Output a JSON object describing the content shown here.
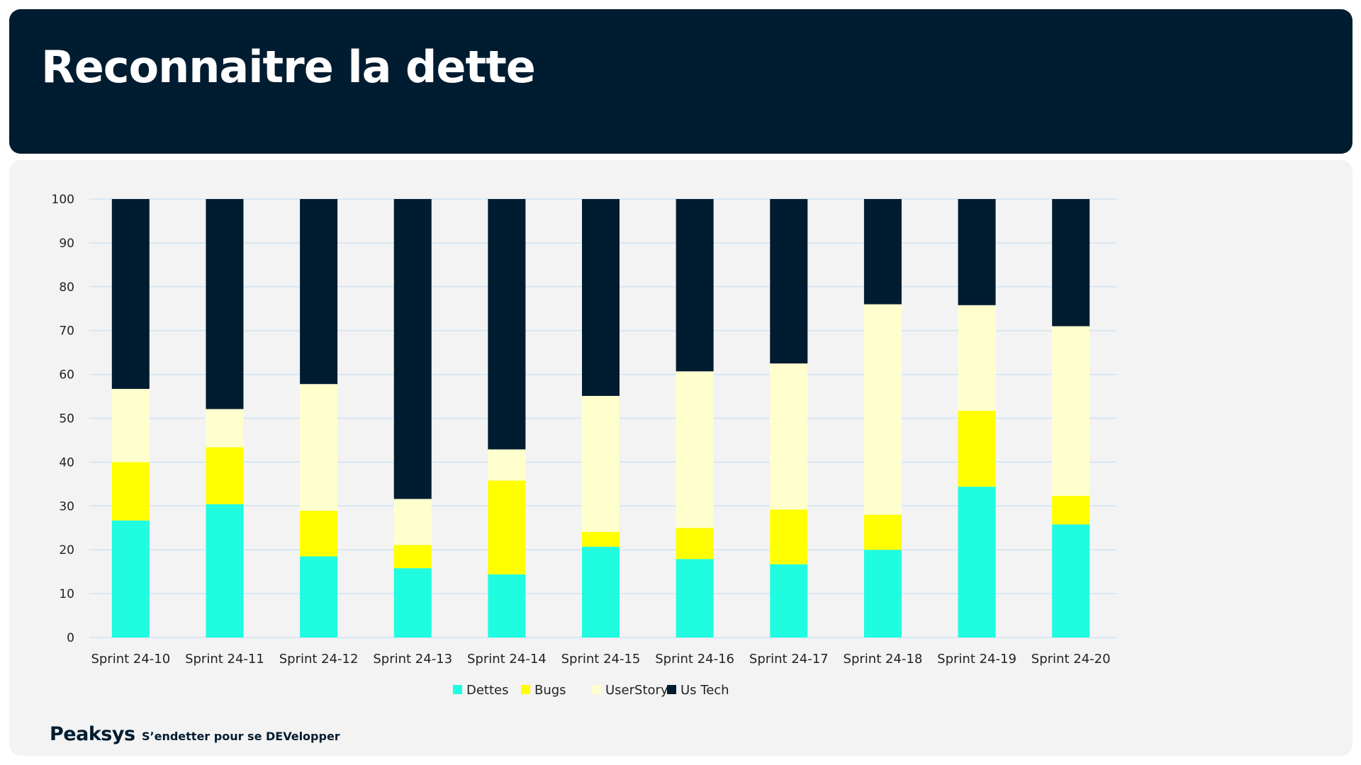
{
  "slide": {
    "title": "Reconnaitre la dette"
  },
  "footer": {
    "brand": "Peaksys",
    "tagline": "S’endetter pour se DEVelopper"
  },
  "chart_data": {
    "type": "bar",
    "stacked": true,
    "title": "",
    "xlabel": "",
    "ylabel": "",
    "ylim": [
      0,
      100
    ],
    "yticks": [
      0,
      10,
      20,
      30,
      40,
      50,
      60,
      70,
      80,
      90,
      100
    ],
    "grid": true,
    "legend_position": "bottom",
    "categories": [
      "Sprint 24-10",
      "Sprint 24-11",
      "Sprint 24-12",
      "Sprint 24-13",
      "Sprint 24-14",
      "Sprint 24-15",
      "Sprint 24-16",
      "Sprint 24-17",
      "Sprint 24-18",
      "Sprint 24-19",
      "Sprint 24-20"
    ],
    "series": [
      {
        "name": "Dettes",
        "color": "#1ffce0",
        "values": [
          26.7,
          30.4,
          18.5,
          15.8,
          14.4,
          20.7,
          17.9,
          16.7,
          20.0,
          34.4,
          25.8
        ]
      },
      {
        "name": "Bugs",
        "color": "#ffff00",
        "values": [
          13.3,
          13.0,
          10.4,
          5.3,
          21.4,
          3.4,
          7.1,
          12.5,
          8.0,
          17.3,
          6.5
        ]
      },
      {
        "name": "UserStory",
        "color": "#ffffce",
        "values": [
          16.7,
          8.7,
          28.9,
          10.5,
          7.1,
          31.0,
          35.7,
          33.3,
          48.0,
          24.1,
          38.7
        ]
      },
      {
        "name": "Us Tech",
        "color": "#001c30",
        "values": [
          43.3,
          47.9,
          42.2,
          68.4,
          57.1,
          44.9,
          39.3,
          37.5,
          24.0,
          24.2,
          29.0
        ]
      }
    ],
    "colors": {
      "gridline": "#cfe3f3",
      "axis_text": "#222222"
    }
  }
}
